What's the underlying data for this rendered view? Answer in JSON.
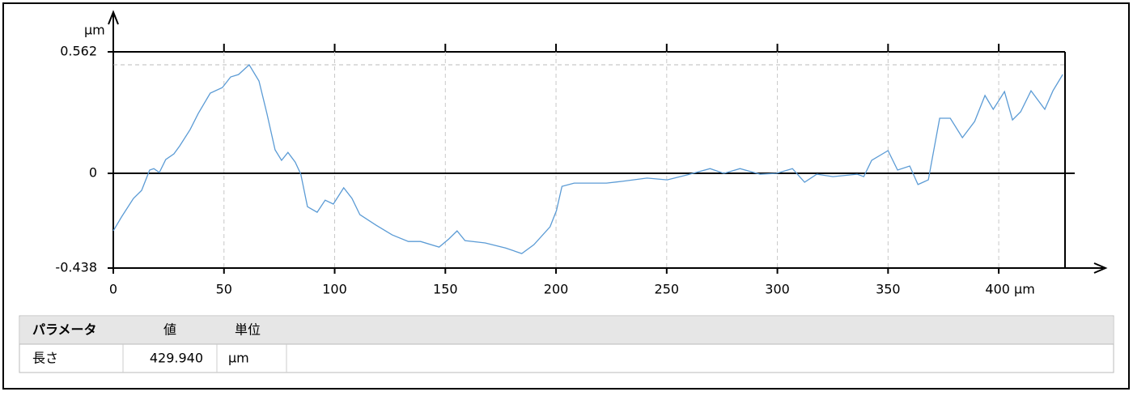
{
  "chart_data": {
    "type": "line",
    "y_label": "µm",
    "x": [
      0,
      3.7,
      9.1,
      12.8,
      16.4,
      18.3,
      20.8,
      23.7,
      27.4,
      30,
      34.7,
      38.4,
      43.8,
      49.3,
      53,
      56.6,
      61.4,
      65.8,
      69.4,
      73.1,
      76,
      78.9,
      82.2,
      84.7,
      87.7,
      92.1,
      95.7,
      99.4,
      104.1,
      107.8,
      111.4,
      118.7,
      126,
      133.3,
      138.8,
      147.2,
      151.6,
      155.3,
      158.9,
      168,
      177.2,
      184.5,
      190,
      197.3,
      200.2,
      202.7,
      208.2,
      222.8,
      230,
      241.1,
      250.2,
      259.4,
      269.6,
      275.8,
      283.1,
      292.2,
      299.5,
      306.8,
      312.3,
      317.8,
      325.1,
      336.1,
      339,
      342.6,
      350,
      354.3,
      359.8,
      363.5,
      368.2,
      373.3,
      378.1,
      383.6,
      389.1,
      393.8,
      397.5,
      402.6,
      406.2,
      409.9,
      414.6,
      420.8,
      424.5,
      428.9
    ],
    "values": [
      -0.266,
      -0.202,
      -0.116,
      -0.079,
      0.015,
      0.022,
      0.004,
      0.064,
      0.09,
      0.127,
      0.202,
      0.277,
      0.371,
      0.397,
      0.446,
      0.457,
      0.502,
      0.427,
      0.277,
      0.109,
      0.06,
      0.097,
      0.052,
      -0.004,
      -0.154,
      -0.18,
      -0.124,
      -0.142,
      -0.067,
      -0.116,
      -0.191,
      -0.24,
      -0.285,
      -0.315,
      -0.315,
      -0.341,
      -0.303,
      -0.266,
      -0.311,
      -0.322,
      -0.345,
      -0.371,
      -0.33,
      -0.247,
      -0.172,
      -0.06,
      -0.045,
      -0.045,
      -0.037,
      -0.022,
      -0.03,
      -0.007,
      0.022,
      0,
      0.022,
      -0.004,
      0,
      0.022,
      -0.041,
      -0.004,
      -0.015,
      -0.004,
      -0.015,
      0.06,
      0.105,
      0.015,
      0.034,
      -0.052,
      -0.03,
      0.255,
      0.255,
      0.165,
      0.24,
      0.36,
      0.296,
      0.378,
      0.247,
      0.285,
      0.382,
      0.296,
      0.382,
      0.457
    ],
    "color": "#5b9bd5",
    "xlim": [
      0,
      429.94
    ],
    "ylim": [
      -0.438,
      0.562
    ],
    "xticks": [
      0,
      50,
      100,
      150,
      200,
      250,
      300,
      350,
      {
        "value": 400,
        "label": "400 µm"
      }
    ],
    "yticks": [
      -0.438,
      0,
      0.562
    ],
    "reference_line": 0.502,
    "grid": true
  },
  "table": {
    "header": [
      "パラメータ",
      "値",
      "単位"
    ],
    "rows": [
      [
        "長さ",
        "429.940",
        "µm"
      ]
    ]
  }
}
